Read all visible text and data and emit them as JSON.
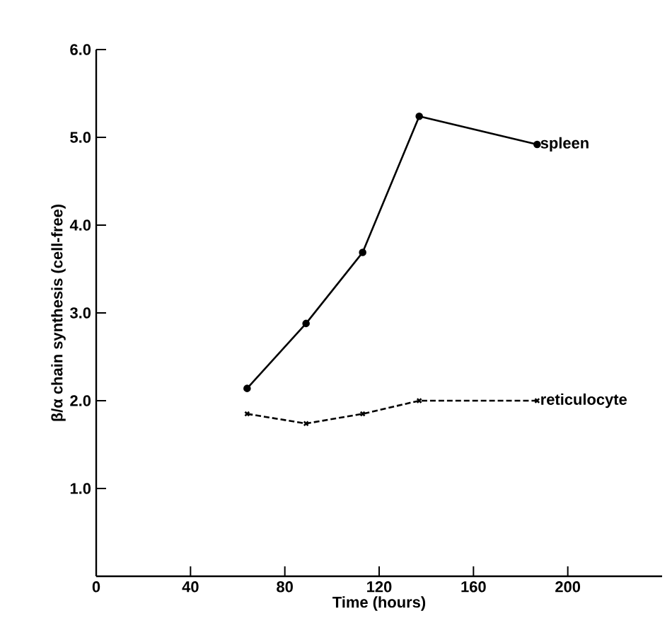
{
  "chart_data": {
    "type": "line",
    "xlabel": "Time (hours)",
    "ylabel": "β/α chain synthesis (cell-free)",
    "xlim": [
      0,
      240
    ],
    "ylim": [
      0,
      6.0
    ],
    "xticks": [
      0,
      40,
      80,
      120,
      160,
      200
    ],
    "yticks": [
      {
        "value": 1.0,
        "label": "1.0"
      },
      {
        "value": 2.0,
        "label": "2.0"
      },
      {
        "value": 3.0,
        "label": "3.0"
      },
      {
        "value": 4.0,
        "label": "4.0"
      },
      {
        "value": 5.0,
        "label": "5.0"
      },
      {
        "value": 6.0,
        "label": "6.0"
      }
    ],
    "series": [
      {
        "name": "spleen",
        "color": "#000000",
        "marker": "circle",
        "line_style": "solid",
        "x": [
          64,
          89,
          113,
          137,
          187
        ],
        "values": [
          2.14,
          2.88,
          3.69,
          5.24,
          4.92
        ]
      },
      {
        "name": "reticulocyte",
        "color": "#000000",
        "marker": "cross",
        "line_style": "dashed",
        "x": [
          64,
          89,
          113,
          137,
          187
        ],
        "values": [
          1.85,
          1.74,
          1.85,
          2.0,
          2.0
        ]
      }
    ]
  }
}
